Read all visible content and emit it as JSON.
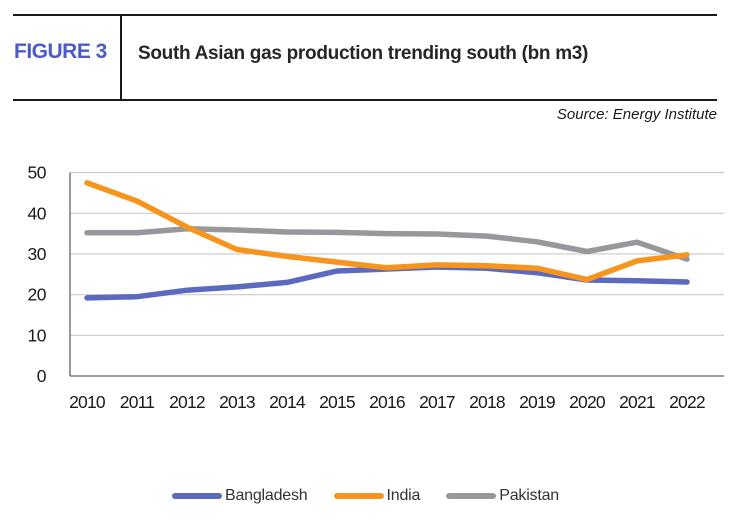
{
  "header": {
    "figure_label": "FIGURE 3",
    "title": "South Asian gas production trending south (bn m3)",
    "accent_color": "#4a5bc8"
  },
  "source": "Source: Energy Institute",
  "chart_data": {
    "type": "line",
    "title": "South Asian gas production trending south (bn m3)",
    "categories": [
      "2010",
      "2011",
      "2012",
      "2013",
      "2014",
      "2015",
      "2016",
      "2017",
      "2018",
      "2019",
      "2020",
      "2021",
      "2022"
    ],
    "series": [
      {
        "name": "Bangladesh",
        "color": "#5b6abf",
        "values": [
          19.2,
          19.5,
          21.1,
          21.9,
          23.0,
          25.8,
          26.3,
          26.8,
          26.5,
          25.4,
          23.6,
          23.4,
          23.1
        ]
      },
      {
        "name": "India",
        "color": "#f7941e",
        "values": [
          47.5,
          43.0,
          36.6,
          31.1,
          29.4,
          28.0,
          26.6,
          27.3,
          27.1,
          26.5,
          23.7,
          28.3,
          29.8
        ]
      },
      {
        "name": "Pakistan",
        "color": "#97989b",
        "values": [
          35.2,
          35.2,
          36.2,
          35.9,
          35.4,
          35.3,
          35.0,
          34.9,
          34.4,
          33.0,
          30.6,
          32.9,
          28.7
        ]
      }
    ],
    "xlabel": "",
    "ylabel": "",
    "ylim": [
      0,
      50
    ],
    "yticks": [
      0,
      10,
      20,
      30,
      40,
      50
    ],
    "grid": "horizontal",
    "grid_color": "#c9c9c9",
    "axis_color": "#7f7f7f",
    "tick_label_color": "#1a1a1a",
    "legend_position": "bottom",
    "draw_order": [
      "Bangladesh",
      "Pakistan",
      "India"
    ]
  }
}
